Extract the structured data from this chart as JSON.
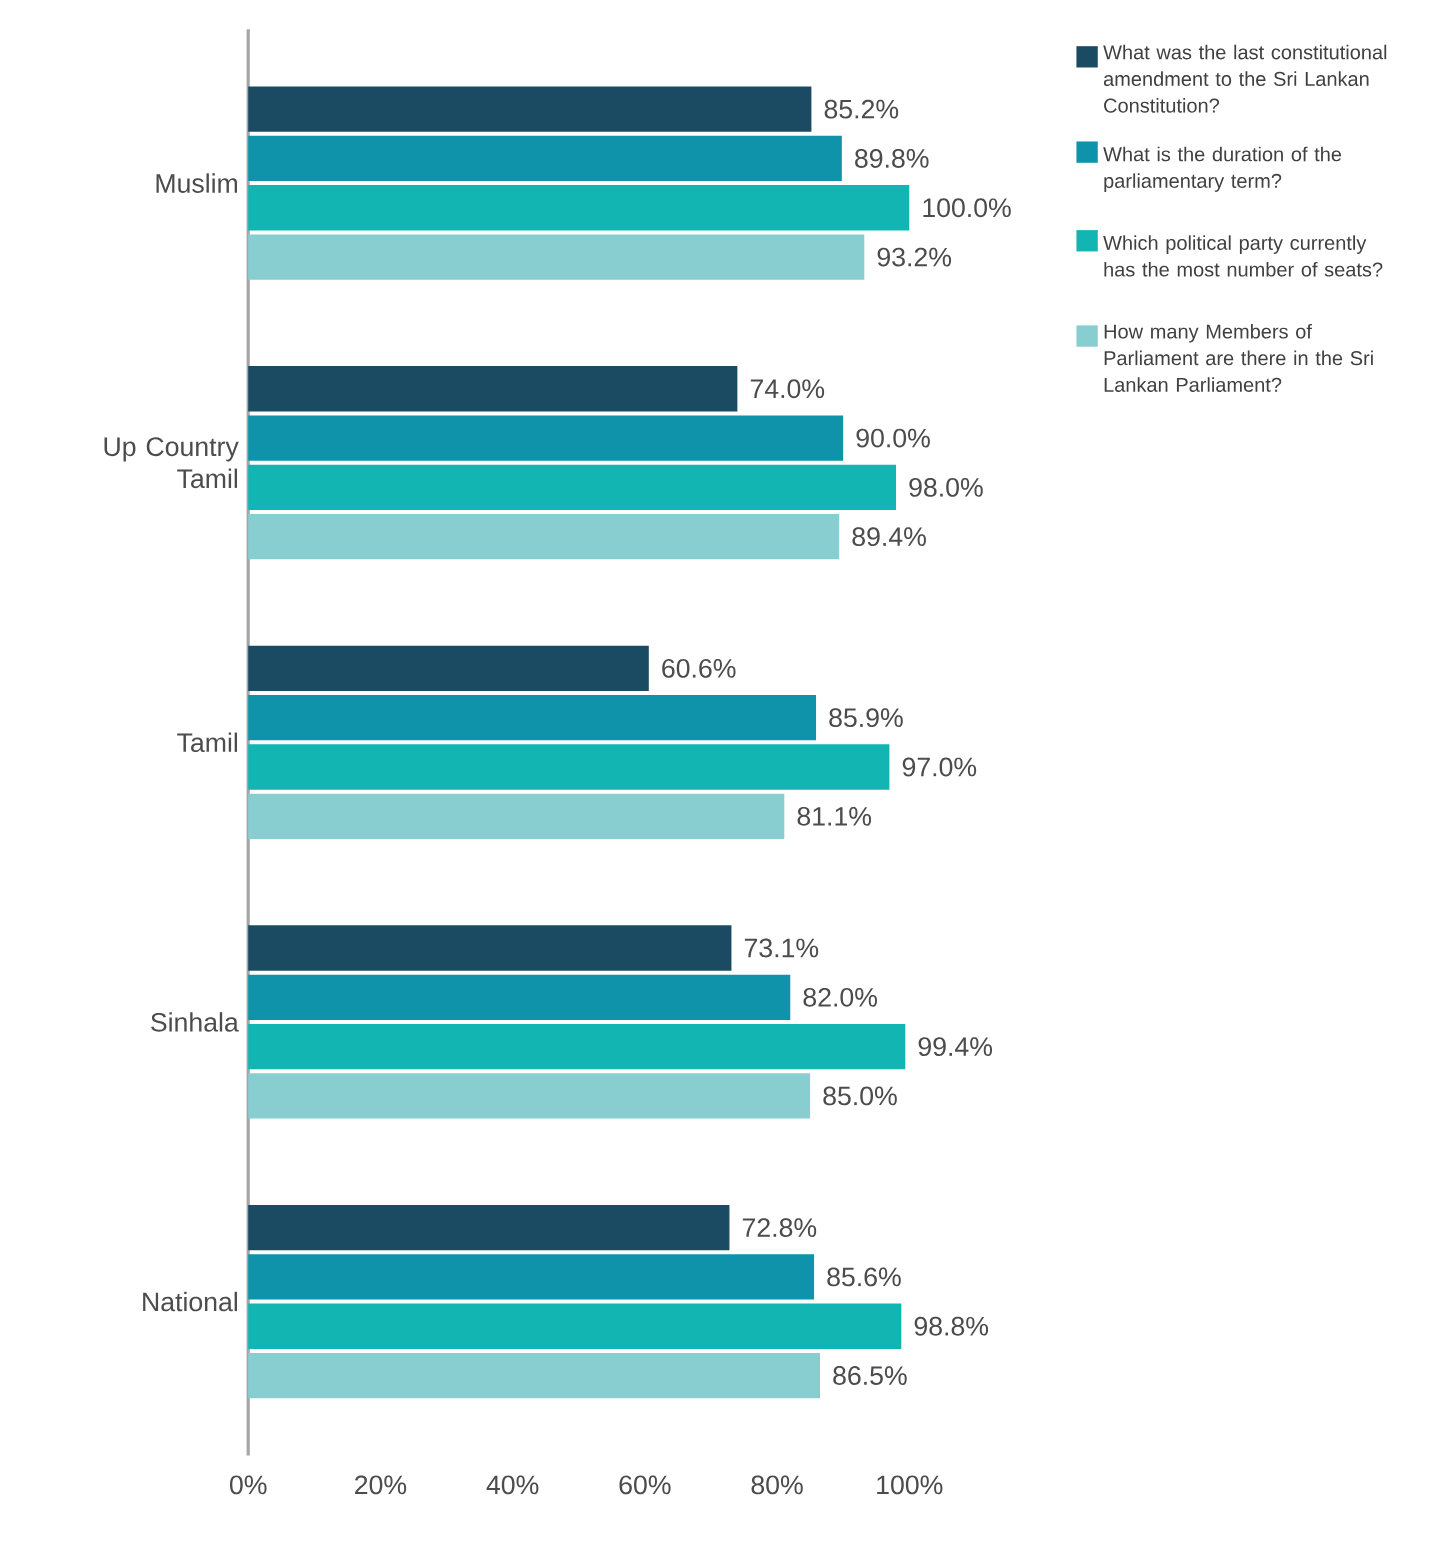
{
  "chart_data": {
    "type": "bar",
    "orientation": "horizontal",
    "categories": [
      "Muslim",
      "Up Country Tamil",
      "Tamil",
      "Sinhala",
      "National"
    ],
    "series": [
      {
        "name": "What was the last constitutional amendment to the Sri Lankan Constitution?",
        "color": "#1b4a63",
        "values": [
          85.2,
          74.0,
          60.6,
          73.1,
          72.8
        ],
        "value_labels": [
          "85.2%",
          "74.0%",
          "60.6%",
          "73.1%",
          "72.8%"
        ]
      },
      {
        "name": "What is the duration of the parliamentary term?",
        "color": "#0f93ab",
        "values": [
          89.8,
          90.0,
          85.9,
          82.0,
          85.6
        ],
        "value_labels": [
          "89.8%",
          "90.0%",
          "85.9%",
          "82.0%",
          "85.6%"
        ]
      },
      {
        "name": "Which political party currently has the most number of seats?",
        "color": "#12b5b2",
        "values": [
          100.0,
          98.0,
          97.0,
          99.4,
          98.8
        ],
        "value_labels": [
          "100.0%",
          "98.0%",
          "97.0%",
          "99.4%",
          "98.8%"
        ]
      },
      {
        "name": "How many Members of Parliament are there in the Sri Lankan Parliament?",
        "color": "#88ced1",
        "values": [
          93.2,
          89.4,
          81.1,
          85.0,
          86.5
        ],
        "value_labels": [
          "93.2%",
          "89.4%",
          "81.1%",
          "85.0%",
          "86.5%"
        ]
      }
    ],
    "xlim": [
      0,
      100
    ],
    "xticks": [
      {
        "value": 0,
        "label": "0%"
      },
      {
        "value": 20,
        "label": "20%"
      },
      {
        "value": 40,
        "label": "40%"
      },
      {
        "value": 60,
        "label": "60%"
      },
      {
        "value": 80,
        "label": "80%"
      },
      {
        "value": 100,
        "label": "100%"
      }
    ],
    "legend": "right",
    "grid": false
  }
}
